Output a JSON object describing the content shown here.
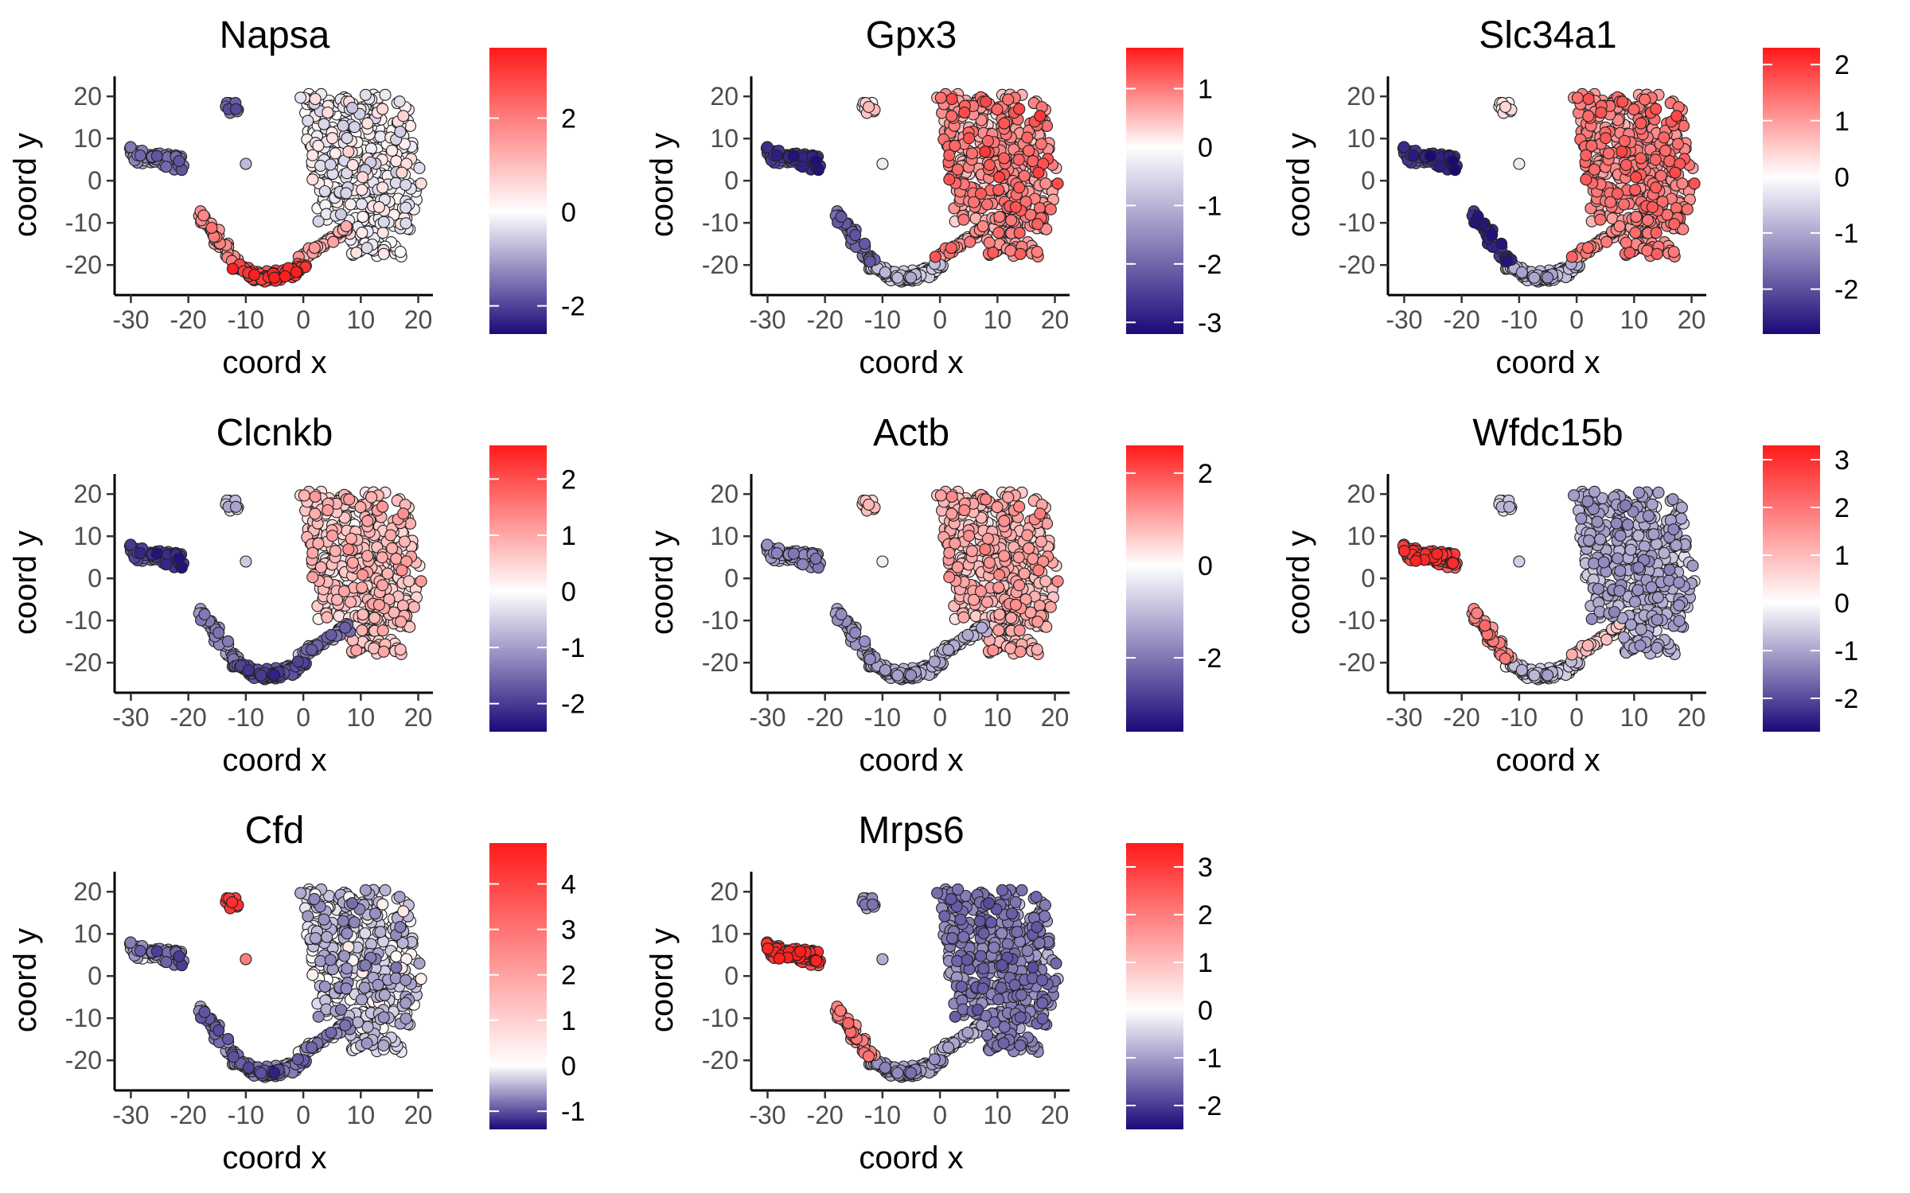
{
  "chart_data": {
    "type": "scatter",
    "layout": "3x3 facet grid",
    "xlabel": "coord x",
    "ylabel": "coord y",
    "xlim": [
      -32,
      22
    ],
    "ylim": [
      -26,
      24
    ],
    "xticks": [
      -30,
      -20,
      -10,
      0,
      10,
      20
    ],
    "yticks": [
      -20,
      -10,
      0,
      10,
      20
    ],
    "grid": false,
    "colors": {
      "low": "#1a0a78",
      "mid": "#ffffff",
      "high": "#ff1a1a"
    },
    "panels": [
      {
        "title": "Napsa",
        "colorbar": {
          "min": -2.6,
          "max": 3.5,
          "ticks": [
            -2,
            0,
            2
          ]
        },
        "cluster_values": {
          "left": -1.2,
          "lower_left": 1.6,
          "bottom": 2.8,
          "right_tail": 1.0,
          "main": 0.0,
          "small_top": -1.5,
          "lone": -0.5
        }
      },
      {
        "title": "Gpx3",
        "colorbar": {
          "min": -3.2,
          "max": 1.7,
          "ticks": [
            -3,
            -2,
            -1,
            0,
            1
          ]
        },
        "cluster_values": {
          "left": -2.5,
          "lower_left": -1.8,
          "bottom": -0.5,
          "right_tail": 0.6,
          "main": 0.8,
          "small_top": 0.3,
          "lone": 0.0
        }
      },
      {
        "title": "Slc34a1",
        "colorbar": {
          "min": -2.8,
          "max": 2.3,
          "ticks": [
            -2,
            -1,
            0,
            1,
            2
          ]
        },
        "cluster_values": {
          "left": -2.2,
          "lower_left": -2.3,
          "bottom": -0.6,
          "right_tail": 0.9,
          "main": 1.2,
          "small_top": 0.2,
          "lone": 0.0
        }
      },
      {
        "title": "Clcnkb",
        "colorbar": {
          "min": -2.5,
          "max": 2.6,
          "ticks": [
            -2,
            -1,
            0,
            1,
            2
          ]
        },
        "cluster_values": {
          "left": -1.8,
          "lower_left": -1.0,
          "bottom": -1.6,
          "right_tail": -1.2,
          "main": 0.6,
          "small_top": -0.5,
          "lone": -0.3
        }
      },
      {
        "title": "Actb",
        "colorbar": {
          "min": -3.6,
          "max": 2.6,
          "ticks": [
            -2,
            0,
            2
          ]
        },
        "cluster_values": {
          "left": -1.4,
          "lower_left": -1.3,
          "bottom": -1.0,
          "right_tail": -0.8,
          "main": 0.8,
          "small_top": 0.6,
          "lone": 0.0
        }
      },
      {
        "title": "Wfdc15b",
        "colorbar": {
          "min": -2.7,
          "max": 3.3,
          "ticks": [
            -2,
            -1,
            0,
            1,
            2,
            3
          ]
        },
        "cluster_values": {
          "left": 2.7,
          "lower_left": 1.6,
          "bottom": -0.4,
          "right_tail": 0.5,
          "main": -0.8,
          "small_top": -0.4,
          "lone": -0.3
        }
      },
      {
        "title": "Cfd",
        "colorbar": {
          "min": -1.4,
          "max": 4.9,
          "ticks": [
            -1,
            0,
            1,
            2,
            3,
            4
          ]
        },
        "cluster_values": {
          "left": -0.5,
          "lower_left": -0.6,
          "bottom": -0.6,
          "right_tail": -0.4,
          "main": -0.2,
          "small_top": 4.2,
          "lone": 3.0
        }
      },
      {
        "title": "Mrps6",
        "colorbar": {
          "min": -2.5,
          "max": 3.5,
          "ticks": [
            -2,
            -1,
            0,
            1,
            2,
            3
          ]
        },
        "cluster_values": {
          "left": 3.0,
          "lower_left": 1.8,
          "bottom": -0.8,
          "right_tail": -0.5,
          "main": -1.2,
          "small_top": -1.0,
          "lone": -0.6
        }
      }
    ],
    "clusters": {
      "left": {
        "x": [
          -30,
          -21
        ],
        "y": [
          4,
          8
        ],
        "hint": "horizontal band"
      },
      "lower_left": {
        "x": [
          -18,
          -11
        ],
        "y": [
          -20,
          -8
        ],
        "hint": "diagonal descending"
      },
      "bottom": {
        "x": [
          -12,
          0
        ],
        "y": [
          -24,
          -15
        ],
        "hint": "V bottom"
      },
      "right_tail": {
        "x": [
          0,
          8
        ],
        "y": [
          -20,
          -11
        ],
        "hint": "diagonal ascending"
      },
      "main": {
        "x": [
          -1,
          21
        ],
        "y": [
          -18,
          21
        ],
        "hint": "large right mass"
      },
      "small_top": {
        "x": [
          -15,
          -10
        ],
        "y": [
          15,
          19
        ],
        "hint": "small cluster"
      },
      "lone": {
        "x": [
          -10,
          -10
        ],
        "y": [
          4,
          4
        ],
        "hint": "single point"
      }
    }
  }
}
